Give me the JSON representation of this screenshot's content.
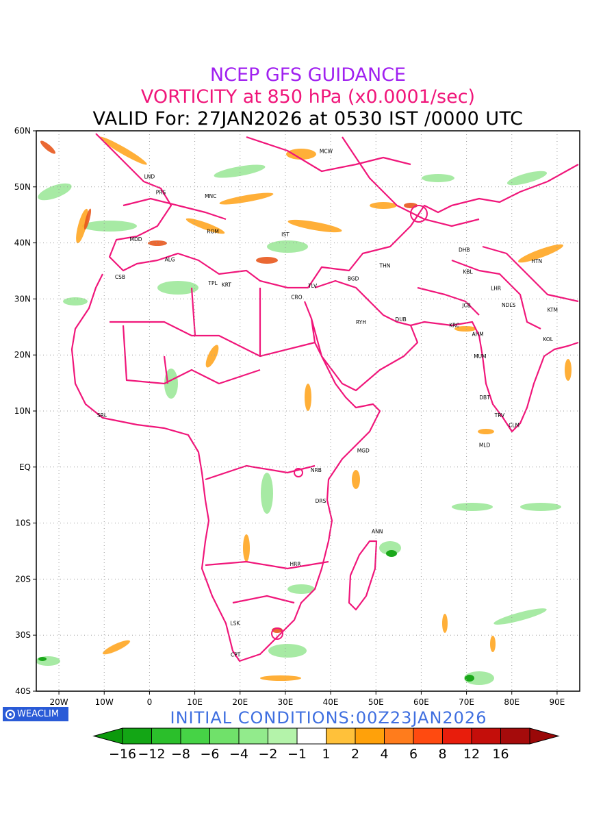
{
  "header": {
    "line1": "NCEP GFS GUIDANCE",
    "line2": "VORTICITY at 850 hPa (x0.0001/sec)",
    "line3": "VALID For: 27JAN2026 at 0530 IST /0000 UTC"
  },
  "map": {
    "lon_range": [
      -25,
      95
    ],
    "lat_range": [
      -40,
      60
    ],
    "lat_ticks": [
      "60N",
      "50N",
      "40N",
      "30N",
      "20N",
      "10N",
      "EQ",
      "10S",
      "20S",
      "30S",
      "40S"
    ],
    "lat_values": [
      60,
      50,
      40,
      30,
      20,
      10,
      0,
      -10,
      -20,
      -30,
      -40
    ],
    "lon_ticks": [
      "20W",
      "10W",
      "0",
      "10E",
      "20E",
      "30E",
      "40E",
      "50E",
      "60E",
      "70E",
      "80E",
      "90E"
    ],
    "lon_values": [
      -20,
      -10,
      0,
      10,
      20,
      30,
      40,
      50,
      60,
      70,
      80,
      90
    ],
    "gridlines": true,
    "border_color": "#f0167a",
    "cities": [
      {
        "code": "MCW",
        "lon": 39,
        "lat": 56
      },
      {
        "code": "LND",
        "lon": 0,
        "lat": 51.5
      },
      {
        "code": "PRS",
        "lon": 2.5,
        "lat": 48.7
      },
      {
        "code": "MNC",
        "lon": 13.5,
        "lat": 48
      },
      {
        "code": "MDD",
        "lon": -3,
        "lat": 40.3
      },
      {
        "code": "ROM",
        "lon": 14,
        "lat": 41.7
      },
      {
        "code": "IST",
        "lon": 30,
        "lat": 41.2
      },
      {
        "code": "ALG",
        "lon": 4.5,
        "lat": 36.7
      },
      {
        "code": "CSB",
        "lon": -6.5,
        "lat": 33.6
      },
      {
        "code": "TPL",
        "lon": 14,
        "lat": 32.5
      },
      {
        "code": "KRT",
        "lon": 17,
        "lat": 32.2
      },
      {
        "code": "TLV",
        "lon": 36,
        "lat": 32
      },
      {
        "code": "CRO",
        "lon": 32.5,
        "lat": 30
      },
      {
        "code": "BGD",
        "lon": 45,
        "lat": 33.3
      },
      {
        "code": "THN",
        "lon": 52,
        "lat": 35.6
      },
      {
        "code": "DHB",
        "lon": 69.5,
        "lat": 38.4
      },
      {
        "code": "HTN",
        "lon": 85.5,
        "lat": 36.4
      },
      {
        "code": "KBL",
        "lon": 70.3,
        "lat": 34.5
      },
      {
        "code": "LHR",
        "lon": 76.5,
        "lat": 31.6
      },
      {
        "code": "JCB",
        "lon": 70,
        "lat": 28.5
      },
      {
        "code": "NDLS",
        "lon": 79.3,
        "lat": 28.6
      },
      {
        "code": "KTM",
        "lon": 89,
        "lat": 27.7
      },
      {
        "code": "RYH",
        "lon": 46.7,
        "lat": 25.5
      },
      {
        "code": "DUB",
        "lon": 55.5,
        "lat": 26
      },
      {
        "code": "KRC",
        "lon": 67.3,
        "lat": 25
      },
      {
        "code": "AHM",
        "lon": 72.5,
        "lat": 23.4
      },
      {
        "code": "KOL",
        "lon": 88,
        "lat": 22.5
      },
      {
        "code": "MUM",
        "lon": 73,
        "lat": 19.4
      },
      {
        "code": "DBT",
        "lon": 74,
        "lat": 12.1
      },
      {
        "code": "SRL",
        "lon": -10.5,
        "lat": 8.9
      },
      {
        "code": "TRV",
        "lon": 77.3,
        "lat": 8.9
      },
      {
        "code": "CLM",
        "lon": 80.5,
        "lat": 7.1
      },
      {
        "code": "MLD",
        "lon": 74,
        "lat": 3.6
      },
      {
        "code": "MGD",
        "lon": 47.2,
        "lat": 2.6
      },
      {
        "code": "NRB",
        "lon": 36.8,
        "lat": -0.9
      },
      {
        "code": "DRS",
        "lon": 37.8,
        "lat": -6.4
      },
      {
        "code": "ANN",
        "lon": 50.3,
        "lat": -11.8
      },
      {
        "code": "HRR",
        "lon": 32.2,
        "lat": -17.6
      },
      {
        "code": "LSK",
        "lon": 18.9,
        "lat": -28.2
      },
      {
        "code": "CPT",
        "lon": 19,
        "lat": -33.8
      }
    ]
  },
  "colorbar": {
    "labels": [
      "−16",
      "−12",
      "−8",
      "−6",
      "−4",
      "−2",
      "−1",
      "1",
      "2",
      "4",
      "6",
      "8",
      "12",
      "16"
    ],
    "colors": [
      "#13a615",
      "#2bbf2b",
      "#46d346",
      "#70e16a",
      "#92eb8c",
      "#b4f3aa",
      "#ffffff",
      "#ffc13a",
      "#ffa10a",
      "#ff7c1c",
      "#ff4a10",
      "#e81d0c",
      "#c40e0a",
      "#a50b0b"
    ],
    "left_arrow_color": "#0c9a0c",
    "right_arrow_color": "#9a0808"
  },
  "footer": {
    "init": "INITIAL  CONDITIONS:00Z23JAN2026",
    "brand": "WEACLIM"
  }
}
